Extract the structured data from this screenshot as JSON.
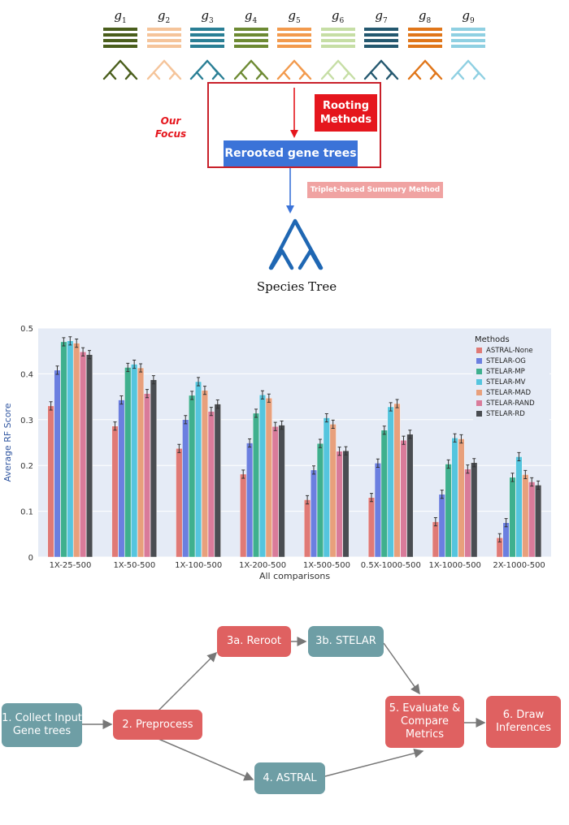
{
  "top_diagram": {
    "genes": [
      {
        "label": "g",
        "sub": "1",
        "color": "#4a5e1c"
      },
      {
        "label": "g",
        "sub": "2",
        "color": "#f5c49a"
      },
      {
        "label": "g",
        "sub": "3",
        "color": "#2a7f95"
      },
      {
        "label": "g",
        "sub": "4",
        "color": "#6d8a33"
      },
      {
        "label": "g",
        "sub": "5",
        "color": "#f29a4d"
      },
      {
        "label": "g",
        "sub": "6",
        "color": "#c6dea5"
      },
      {
        "label": "g",
        "sub": "7",
        "color": "#24586f"
      },
      {
        "label": "g",
        "sub": "8",
        "color": "#e0761a"
      },
      {
        "label": "g",
        "sub": "9",
        "color": "#8fd0e2"
      }
    ],
    "rooting_methods": "Rooting Methods",
    "rerooted_gene_trees": "Rerooted gene trees",
    "our_focus": "Our Focus",
    "triplet_method": "Triplet-based Summary Method",
    "species_tree": "Species Tree"
  },
  "chart_data": {
    "type": "bar",
    "title": "",
    "xlabel": "All comparisons",
    "ylabel": "Average RF Score",
    "ylim": [
      0,
      0.5
    ],
    "yticks": [
      0,
      0.1,
      0.2,
      0.3,
      0.4,
      0.5
    ],
    "grid": true,
    "legend_title": "Methods",
    "legend_position": "top-right",
    "categories": [
      "1X-25-500",
      "1X-50-500",
      "1X-100-500",
      "1X-200-500",
      "1X-500-500",
      "0.5X-1000-500",
      "1X-1000-500",
      "2X-1000-500"
    ],
    "series": [
      {
        "name": "ASTRAL-None",
        "color": "#e07a76",
        "values": [
          0.33,
          0.286,
          0.237,
          0.181,
          0.125,
          0.13,
          0.077,
          0.042
        ]
      },
      {
        "name": "STELAR-OG",
        "color": "#6b7fe0",
        "values": [
          0.408,
          0.343,
          0.3,
          0.249,
          0.19,
          0.205,
          0.137,
          0.075
        ]
      },
      {
        "name": "STELAR-MP",
        "color": "#3fb08e",
        "values": [
          0.47,
          0.414,
          0.353,
          0.314,
          0.248,
          0.277,
          0.203,
          0.174
        ]
      },
      {
        "name": "STELAR-MV",
        "color": "#55c5de",
        "values": [
          0.472,
          0.421,
          0.383,
          0.354,
          0.304,
          0.328,
          0.26,
          0.219
        ]
      },
      {
        "name": "STELAR-MAD",
        "color": "#e8a07c",
        "values": [
          0.467,
          0.413,
          0.364,
          0.347,
          0.29,
          0.335,
          0.258,
          0.18
        ]
      },
      {
        "name": "STELAR-RAND",
        "color": "#d97b9a",
        "values": [
          0.448,
          0.357,
          0.318,
          0.285,
          0.231,
          0.255,
          0.192,
          0.164
        ]
      },
      {
        "name": "STELAR-RD",
        "color": "#4a4d52",
        "values": [
          0.442,
          0.387,
          0.334,
          0.288,
          0.232,
          0.268,
          0.206,
          0.157
        ]
      }
    ]
  },
  "flow": {
    "collect": "1. Collect Input Gene trees",
    "preprocess": "2. Preprocess",
    "reroot": "3a. Reroot",
    "stelar": "3b. STELAR",
    "astral": "4. ASTRAL",
    "evaluate": "5. Evaluate & Compare Metrics",
    "draw": "6. Draw Inferences"
  }
}
